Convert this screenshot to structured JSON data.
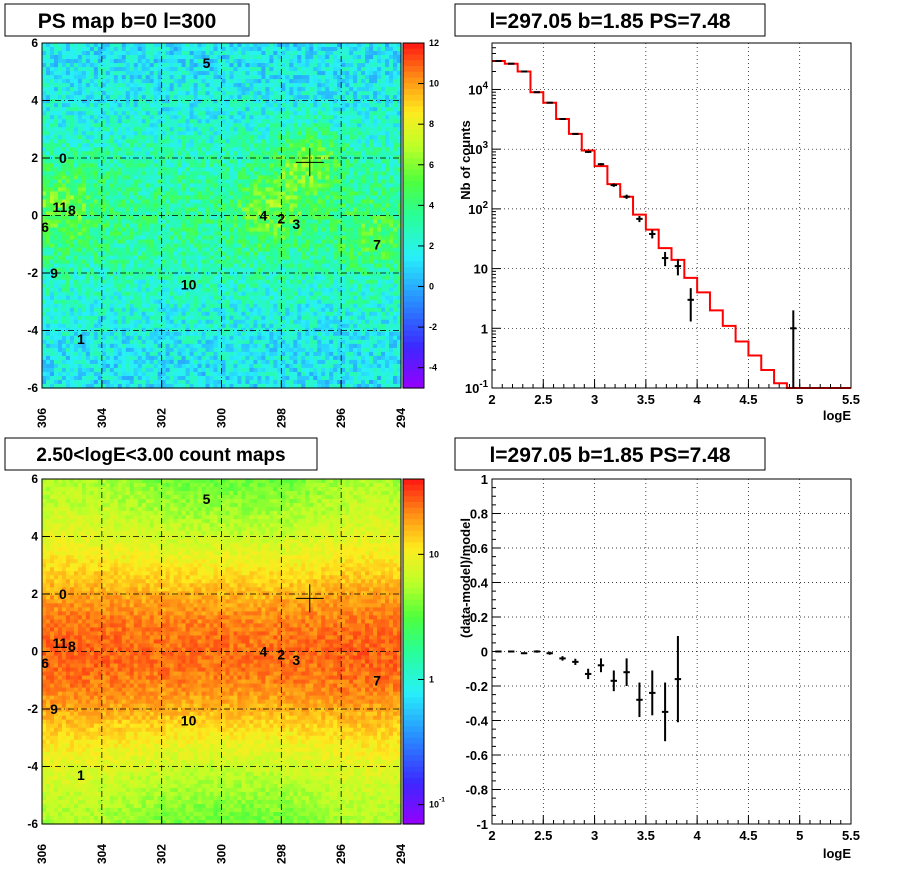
{
  "titles": {
    "map_ps": "PS map b=0 l=300",
    "spectrum": "l=297.05 b=1.85 PS=7.48",
    "map_counts": "2.50<logE<3.00 count maps",
    "residual": "l=297.05 b=1.85 PS=7.48"
  },
  "chart_data": [
    {
      "type": "heatmap",
      "title": "PS map b=0 l=300",
      "x_ticks": [
        "306",
        "304",
        "302",
        "300",
        "298",
        "296",
        "294"
      ],
      "y_ticks": [
        "6",
        "4",
        "2",
        "0",
        "-2",
        "-4",
        "-6"
      ],
      "xlim": [
        306,
        294
      ],
      "ylim": [
        -6,
        6
      ],
      "colorbar": {
        "scale": "linear",
        "range": [
          -5,
          12
        ],
        "ticks": [
          "12",
          "10",
          "8",
          "6",
          "4",
          "2",
          "0",
          "-2",
          "-4"
        ]
      },
      "source_labels": [
        {
          "label": "0",
          "l": 305.3,
          "b": 2.0
        },
        {
          "label": "1",
          "l": 304.7,
          "b": -4.3
        },
        {
          "label": "2",
          "l": 298.0,
          "b": -0.1
        },
        {
          "label": "3",
          "l": 297.5,
          "b": -0.3
        },
        {
          "label": "4",
          "l": 298.6,
          "b": 0.0
        },
        {
          "label": "5",
          "l": 300.5,
          "b": 5.3
        },
        {
          "label": "6",
          "l": 305.9,
          "b": -0.4
        },
        {
          "label": "7",
          "l": 294.8,
          "b": -1.0
        },
        {
          "label": "8",
          "l": 305.0,
          "b": 0.2
        },
        {
          "label": "9",
          "l": 305.6,
          "b": -2.0
        },
        {
          "label": "10",
          "l": 301.1,
          "b": -2.4
        },
        {
          "label": "11",
          "l": 305.4,
          "b": 0.3
        }
      ],
      "marker": {
        "l": 297.05,
        "b": 1.85
      }
    },
    {
      "type": "line",
      "title": "l=297.05 b=1.85 PS=7.48",
      "xlabel": "logE",
      "ylabel": "Nb of counts",
      "xlim": [
        2,
        5.5
      ],
      "ylim": [
        0.1,
        60000
      ],
      "yscale": "log",
      "grid": true,
      "x_ticks": [
        "2",
        "2.5",
        "3",
        "3.5",
        "4",
        "4.5",
        "5",
        "5.5"
      ],
      "y_ticks": [
        "10^-1",
        "1",
        "10",
        "10^2",
        "10^3",
        "10^4"
      ],
      "series": [
        {
          "kind": "model-histogram",
          "color": "#ff0000",
          "bin_width": 0.125,
          "x": [
            2.0625,
            2.1875,
            2.3125,
            2.4375,
            2.5625,
            2.6875,
            2.8125,
            2.9375,
            3.0625,
            3.1875,
            3.3125,
            3.4375,
            3.5625,
            3.6875,
            3.8125,
            3.9375,
            4.0625,
            4.1875,
            4.3125,
            4.4375,
            4.5625,
            4.6875,
            4.8125,
            4.9375,
            5.0625,
            5.1875,
            5.3125,
            5.4375
          ],
          "values": [
            30000,
            27000,
            20000,
            9000,
            6000,
            3200,
            1800,
            950,
            520,
            260,
            160,
            80,
            45,
            22,
            14,
            7,
            4,
            2,
            1.1,
            0.6,
            0.35,
            0.2,
            0.12,
            0.1,
            0.1,
            0.1,
            0.1,
            0.1
          ]
        },
        {
          "kind": "data-points",
          "color": "#000000",
          "x": [
            2.0625,
            2.1875,
            2.3125,
            2.4375,
            2.5625,
            2.6875,
            2.8125,
            2.9375,
            3.0625,
            3.1875,
            3.3125,
            3.4375,
            3.5625,
            3.6875,
            3.8125,
            3.9375,
            4.0625,
            4.1875,
            4.3125,
            4.4375,
            4.5625,
            4.6875,
            4.8125,
            4.9375,
            5.0625,
            5.1875,
            5.3125,
            5.4375
          ],
          "values": [
            30000,
            27000,
            20000,
            9000,
            6000,
            3200,
            1800,
            900,
            560,
            250,
            160,
            68,
            38,
            15,
            11,
            3,
            0,
            0,
            0,
            0,
            0,
            0,
            0,
            1,
            0,
            0,
            0,
            0
          ],
          "err_low": [
            170,
            160,
            140,
            95,
            77,
            57,
            42,
            30,
            24,
            16,
            13,
            8,
            6,
            4,
            3.3,
            1.7,
            0,
            0,
            0,
            0,
            0,
            0,
            0,
            1,
            0,
            0,
            0,
            0
          ],
          "err_high": [
            170,
            160,
            140,
            95,
            77,
            57,
            42,
            30,
            24,
            16,
            13,
            8,
            6,
            4,
            3.3,
            1.7,
            0,
            0,
            0,
            0,
            0,
            0,
            0,
            1,
            0,
            0,
            0,
            0
          ]
        }
      ]
    },
    {
      "type": "heatmap",
      "title": "2.50<logE<3.00 count maps",
      "x_ticks": [
        "306",
        "304",
        "302",
        "300",
        "298",
        "296",
        "294"
      ],
      "y_ticks": [
        "6",
        "4",
        "2",
        "0",
        "-2",
        "-4",
        "-6"
      ],
      "xlim": [
        306,
        294
      ],
      "ylim": [
        -6,
        6
      ],
      "colorbar": {
        "scale": "log",
        "range": [
          0.07,
          40
        ],
        "ticks": [
          "10",
          "1",
          "10^-1"
        ]
      },
      "source_labels": [
        {
          "label": "0",
          "l": 305.3,
          "b": 2.0
        },
        {
          "label": "1",
          "l": 304.7,
          "b": -4.3
        },
        {
          "label": "2",
          "l": 298.0,
          "b": -0.1
        },
        {
          "label": "3",
          "l": 297.5,
          "b": -0.3
        },
        {
          "label": "4",
          "l": 298.6,
          "b": 0.0
        },
        {
          "label": "5",
          "l": 300.5,
          "b": 5.3
        },
        {
          "label": "6",
          "l": 305.9,
          "b": -0.4
        },
        {
          "label": "7",
          "l": 294.8,
          "b": -1.0
        },
        {
          "label": "8",
          "l": 305.0,
          "b": 0.2
        },
        {
          "label": "9",
          "l": 305.6,
          "b": -2.0
        },
        {
          "label": "10",
          "l": 301.1,
          "b": -2.4
        },
        {
          "label": "11",
          "l": 305.4,
          "b": 0.3
        }
      ],
      "marker": {
        "l": 297.05,
        "b": 1.85
      }
    },
    {
      "type": "scatter",
      "title": "l=297.05 b=1.85 PS=7.48",
      "xlabel": "logE",
      "ylabel": "(data-model)/model",
      "xlim": [
        2,
        5.5
      ],
      "ylim": [
        -1,
        1
      ],
      "grid": true,
      "x_ticks": [
        "2",
        "2.5",
        "3",
        "3.5",
        "4",
        "4.5",
        "5",
        "5.5"
      ],
      "y_ticks": [
        "1",
        "0.8",
        "0.6",
        "0.4",
        "0.2",
        "0",
        "-0.2",
        "-0.4",
        "-0.6",
        "-0.8",
        "-1"
      ],
      "bin_width": 0.125,
      "x": [
        2.0625,
        2.1875,
        2.3125,
        2.4375,
        2.5625,
        2.6875,
        2.8125,
        2.9375,
        3.0625,
        3.1875,
        3.3125,
        3.4375,
        3.5625,
        3.6875,
        3.8125
      ],
      "values": [
        0.0,
        0.0,
        -0.01,
        0.0,
        -0.01,
        -0.04,
        -0.06,
        -0.13,
        -0.08,
        -0.17,
        -0.12,
        -0.28,
        -0.24,
        -0.35,
        -0.16
      ],
      "err_low": [
        0.003,
        0.004,
        0.005,
        0.007,
        0.009,
        0.013,
        0.018,
        0.03,
        0.04,
        0.06,
        0.08,
        0.1,
        0.13,
        0.17,
        0.25
      ],
      "err_high": [
        0.003,
        0.004,
        0.005,
        0.007,
        0.009,
        0.013,
        0.018,
        0.03,
        0.04,
        0.06,
        0.08,
        0.1,
        0.13,
        0.17,
        0.25
      ]
    }
  ]
}
